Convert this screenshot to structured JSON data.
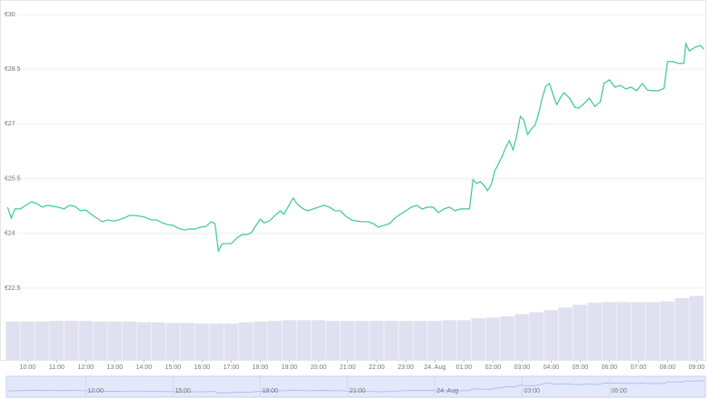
{
  "chart_data": {
    "type": "line",
    "color": "#3cc98f",
    "x": [
      9.31,
      9.44,
      9.56,
      9.75,
      9.94,
      10.13,
      10.31,
      10.5,
      10.69,
      10.88,
      11.06,
      11.25,
      11.44,
      11.63,
      11.81,
      12.0,
      12.19,
      12.38,
      12.56,
      12.75,
      12.94,
      13.13,
      13.31,
      13.5,
      13.69,
      13.88,
      14.06,
      14.25,
      14.44,
      14.63,
      14.81,
      15.0,
      15.19,
      15.38,
      15.56,
      15.75,
      15.94,
      16.13,
      16.31,
      16.44,
      16.56,
      16.69,
      16.81,
      17.0,
      17.19,
      17.38,
      17.56,
      17.69,
      17.81,
      18.0,
      18.13,
      18.31,
      18.5,
      18.69,
      18.81,
      19.0,
      19.13,
      19.25,
      19.44,
      19.63,
      19.81,
      20.0,
      20.19,
      20.38,
      20.56,
      20.75,
      20.94,
      21.13,
      21.31,
      21.5,
      21.69,
      21.88,
      22.06,
      22.25,
      22.44,
      22.63,
      22.81,
      23.0,
      23.19,
      23.38,
      23.56,
      23.75,
      23.94,
      24.13,
      24.31,
      24.5,
      24.69,
      24.88,
      25.06,
      25.19,
      25.31,
      25.44,
      25.56,
      25.69,
      25.81,
      25.94,
      26.06,
      26.19,
      26.31,
      26.44,
      26.56,
      26.69,
      26.81,
      26.94,
      27.06,
      27.19,
      27.31,
      27.44,
      27.56,
      27.69,
      27.81,
      27.94,
      28.06,
      28.19,
      28.31,
      28.44,
      28.63,
      28.81,
      28.94,
      29.13,
      29.31,
      29.5,
      29.69,
      29.81,
      30.0,
      30.19,
      30.38,
      30.56,
      30.75,
      30.94,
      31.13,
      31.31,
      31.5,
      31.69,
      31.88,
      32.0,
      32.19,
      32.38,
      32.56,
      32.63,
      32.75,
      32.94,
      33.13,
      33.25
    ],
    "values": [
      24.72,
      24.42,
      24.67,
      24.67,
      24.77,
      24.87,
      24.82,
      24.72,
      24.77,
      24.74,
      24.72,
      24.67,
      24.77,
      24.74,
      24.62,
      24.64,
      24.52,
      24.42,
      24.32,
      24.37,
      24.34,
      24.37,
      24.42,
      24.49,
      24.49,
      24.47,
      24.44,
      24.37,
      24.37,
      24.29,
      24.24,
      24.22,
      24.14,
      24.09,
      24.12,
      24.12,
      24.17,
      24.19,
      24.32,
      24.27,
      23.52,
      23.72,
      23.72,
      23.72,
      23.87,
      23.97,
      23.97,
      24.02,
      24.17,
      24.39,
      24.29,
      24.34,
      24.49,
      24.62,
      24.52,
      24.79,
      24.97,
      24.82,
      24.69,
      24.62,
      24.67,
      24.72,
      24.77,
      24.72,
      24.62,
      24.62,
      24.47,
      24.37,
      24.34,
      24.32,
      24.32,
      24.27,
      24.17,
      24.22,
      24.27,
      24.42,
      24.52,
      24.62,
      24.72,
      24.77,
      24.67,
      24.72,
      24.72,
      24.57,
      24.67,
      24.72,
      24.62,
      24.67,
      24.67,
      24.67,
      25.47,
      25.37,
      25.42,
      25.32,
      25.17,
      25.34,
      25.71,
      25.91,
      26.11,
      26.36,
      26.54,
      26.29,
      26.66,
      27.21,
      27.11,
      26.71,
      26.86,
      26.96,
      27.26,
      27.71,
      28.03,
      28.11,
      27.81,
      27.53,
      27.71,
      27.86,
      27.71,
      27.46,
      27.43,
      27.56,
      27.71,
      27.48,
      27.61,
      28.11,
      28.21,
      28.01,
      28.06,
      27.96,
      28.01,
      27.91,
      28.11,
      27.93,
      27.91,
      27.91,
      27.98,
      28.71,
      28.71,
      28.66,
      28.66,
      29.2,
      29.0,
      29.1,
      29.15,
      29.05
    ],
    "xlim": [
      9.3,
      33.3
    ],
    "ylim": [
      22.5,
      30
    ],
    "yticks": [
      {
        "value": 30,
        "label": "€30"
      },
      {
        "value": 28.5,
        "label": "€28.5"
      },
      {
        "value": 27,
        "label": "€27"
      },
      {
        "value": 25.5,
        "label": "€25.5"
      },
      {
        "value": 24,
        "label": "€24"
      },
      {
        "value": 22.5,
        "label": "€22.5"
      }
    ],
    "xticks": [
      {
        "value": 10,
        "label": "10:00"
      },
      {
        "value": 11,
        "label": "11:00"
      },
      {
        "value": 12,
        "label": "12:00"
      },
      {
        "value": 13,
        "label": "13:00"
      },
      {
        "value": 14,
        "label": "14:00"
      },
      {
        "value": 15,
        "label": "15:00"
      },
      {
        "value": 16,
        "label": "16:00"
      },
      {
        "value": 17,
        "label": "17:00"
      },
      {
        "value": 18,
        "label": "18:00"
      },
      {
        "value": 19,
        "label": "19:00"
      },
      {
        "value": 20,
        "label": "20:00"
      },
      {
        "value": 21,
        "label": "21:00"
      },
      {
        "value": 22,
        "label": "22:00"
      },
      {
        "value": 23,
        "label": "23:00"
      },
      {
        "value": 24,
        "label": "24. Aug"
      },
      {
        "value": 25,
        "label": "01:00"
      },
      {
        "value": 26,
        "label": "02:00"
      },
      {
        "value": 27,
        "label": "03:00"
      },
      {
        "value": 28,
        "label": "04:00"
      },
      {
        "value": 29,
        "label": "05:00"
      },
      {
        "value": 30,
        "label": "06:00"
      },
      {
        "value": 31,
        "label": "07:00"
      },
      {
        "value": 32,
        "label": "08:00"
      },
      {
        "value": 33,
        "label": "09:00"
      }
    ],
    "grid": true,
    "volume": {
      "color": "#dfe1f0",
      "x": [
        9.5,
        10,
        10.5,
        11,
        11.5,
        12,
        12.5,
        13,
        13.5,
        14,
        14.5,
        15,
        15.5,
        16,
        16.5,
        17,
        17.5,
        18,
        18.5,
        19,
        19.5,
        20,
        20.5,
        21,
        21.5,
        22,
        22.5,
        23,
        23.5,
        24,
        24.5,
        25,
        25.5,
        26,
        26.5,
        27,
        27.5,
        28,
        28.5,
        29,
        29.5,
        30,
        30.5,
        31,
        31.5,
        32,
        32.5,
        33
      ],
      "values": [
        57,
        57,
        57,
        58,
        58,
        58,
        57,
        57,
        57,
        56,
        56,
        55,
        55,
        54,
        54,
        54,
        56,
        57,
        58,
        59,
        59,
        59,
        58,
        58,
        58,
        58,
        58,
        58,
        58,
        58,
        59,
        59,
        62,
        63,
        65,
        68,
        71,
        74,
        78,
        82,
        85,
        86,
        86,
        86,
        86,
        87,
        92,
        95
      ],
      "y2lim": [
        0,
        100
      ]
    },
    "navigator_ticks": [
      12,
      15,
      18,
      21,
      24,
      27,
      30
    ]
  }
}
